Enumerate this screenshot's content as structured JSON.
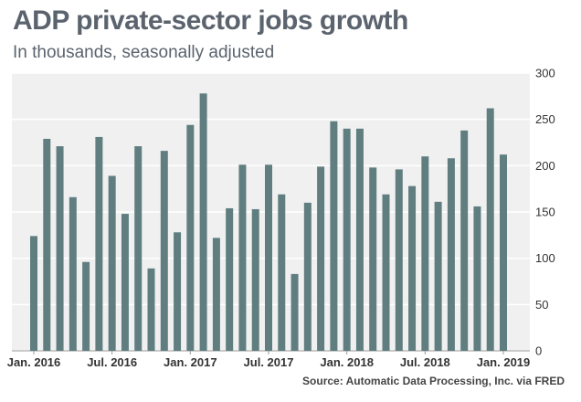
{
  "title": "ADP private-sector jobs growth",
  "subtitle": "In thousands, seasonally adjusted",
  "source": "Source: Automatic Data Processing, Inc. via FRED",
  "colors": {
    "bar": "#607e80",
    "plot_bg": "#f0f0f0",
    "grid": "#ffffff",
    "axis": "#999999"
  },
  "chart_data": {
    "type": "bar",
    "title": "ADP private-sector jobs growth",
    "subtitle": "In thousands, seasonally adjusted",
    "xlabel": "",
    "ylabel": "",
    "ylim": [
      0,
      300
    ],
    "yticks": [
      0,
      50,
      100,
      150,
      200,
      250,
      300
    ],
    "y_axis_side": "right",
    "grid": true,
    "categories": [
      "Jan. 2016",
      "Feb. 2016",
      "Mar. 2016",
      "Apr. 2016",
      "May 2016",
      "Jun. 2016",
      "Jul. 2016",
      "Aug. 2016",
      "Sep. 2016",
      "Oct. 2016",
      "Nov. 2016",
      "Dec. 2016",
      "Jan. 2017",
      "Feb. 2017",
      "Mar. 2017",
      "Apr. 2017",
      "May 2017",
      "Jun. 2017",
      "Jul. 2017",
      "Aug. 2017",
      "Sep. 2017",
      "Oct. 2017",
      "Nov. 2017",
      "Dec. 2017",
      "Jan. 2018",
      "Feb. 2018",
      "Mar. 2018",
      "Apr. 2018",
      "May 2018",
      "Jun. 2018",
      "Jul. 2018",
      "Aug. 2018",
      "Sep. 2018",
      "Oct. 2018",
      "Nov. 2018",
      "Dec. 2018",
      "Jan. 2019"
    ],
    "values": [
      124,
      229,
      221,
      166,
      96,
      231,
      189,
      148,
      221,
      89,
      216,
      128,
      244,
      278,
      122,
      154,
      201,
      153,
      201,
      169,
      83,
      160,
      199,
      248,
      240,
      240,
      198,
      169,
      196,
      178,
      210,
      161,
      208,
      238,
      156,
      262,
      212
    ],
    "x_tick_labels": [
      {
        "index": 0,
        "label": "Jan. 2016"
      },
      {
        "index": 6,
        "label": "Jul. 2016"
      },
      {
        "index": 12,
        "label": "Jan. 2017"
      },
      {
        "index": 18,
        "label": "Jul. 2017"
      },
      {
        "index": 24,
        "label": "Jan. 2018"
      },
      {
        "index": 30,
        "label": "Jul. 2018"
      },
      {
        "index": 36,
        "label": "Jan. 2019"
      }
    ]
  }
}
